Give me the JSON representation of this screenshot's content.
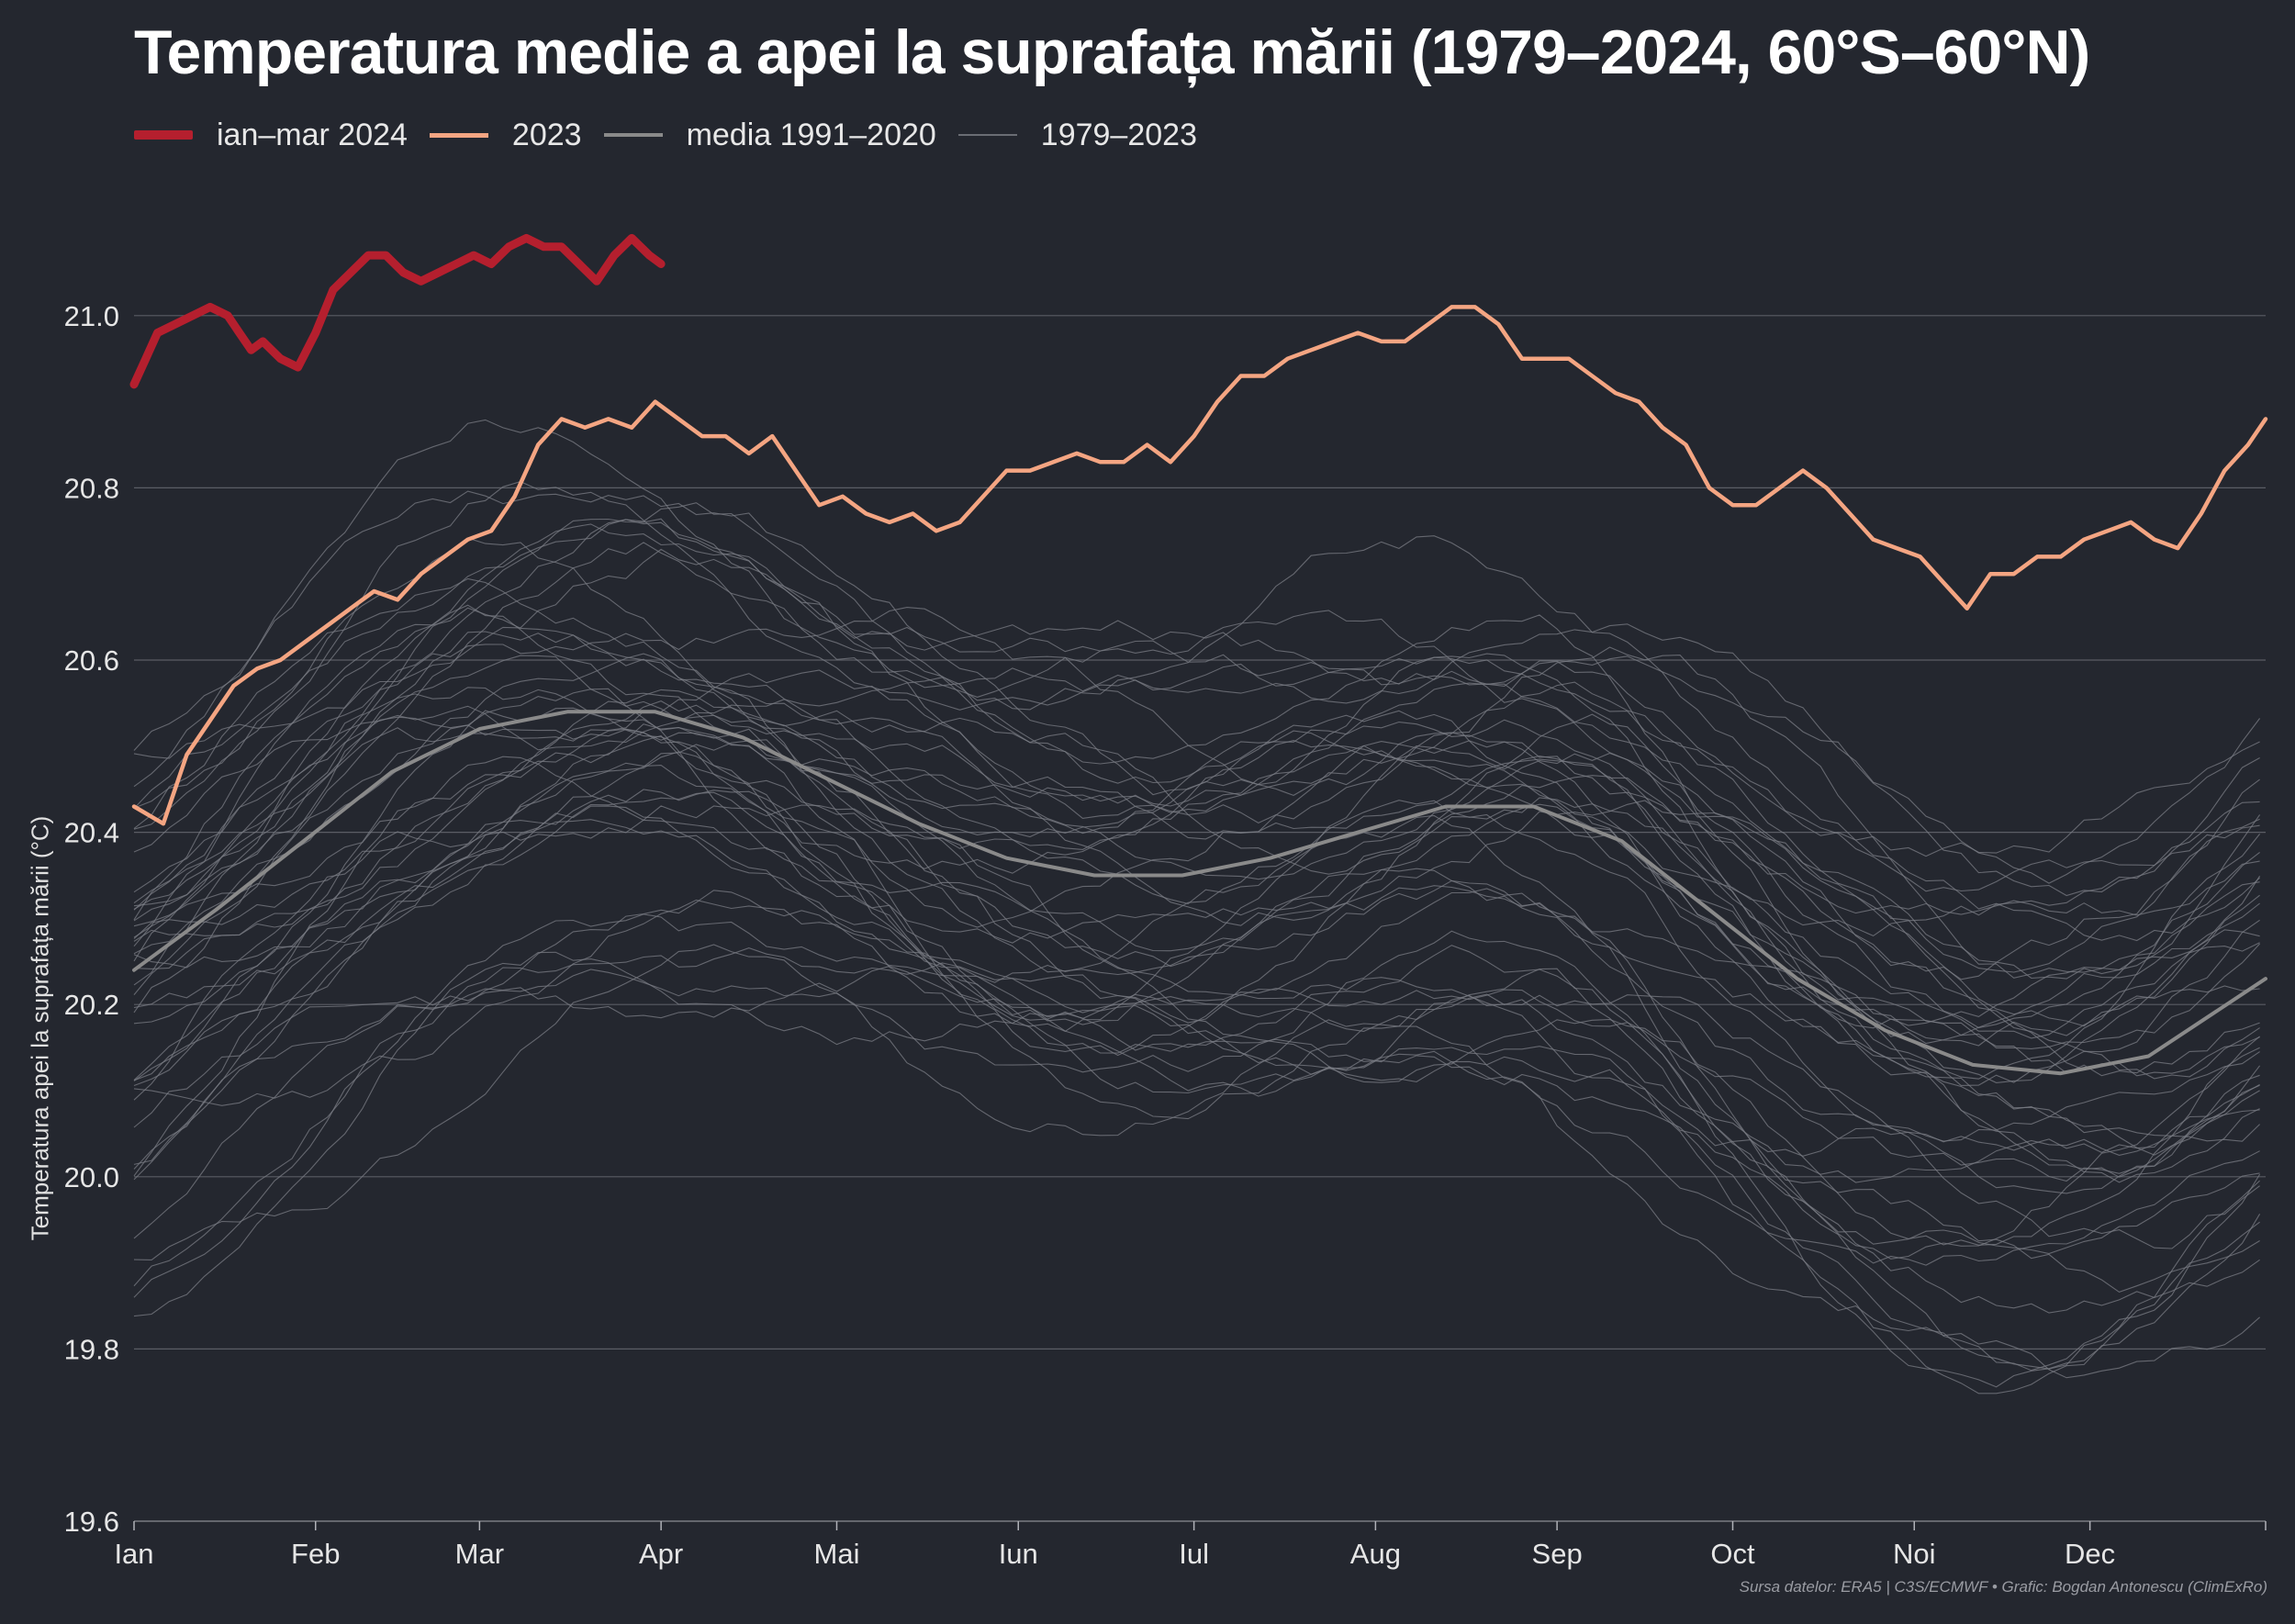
{
  "chart_data": {
    "type": "line",
    "title": "Temperatura medie a apei la suprafața mării (1979–2024, 60°S–60°N)",
    "ylabel": "Temperatura apei la suprafața mării (°C)",
    "xlabel": "",
    "ylim": [
      19.6,
      21.1
    ],
    "y_ticks": [
      "19.6",
      "19.8",
      "20.0",
      "20.2",
      "20.4",
      "20.6",
      "20.8",
      "21.0"
    ],
    "x_ticks": [
      "Ian",
      "Feb",
      "Mar",
      "Apr",
      "Mai",
      "Iun",
      "Iul",
      "Aug",
      "Sep",
      "Oct",
      "Noi",
      "Dec"
    ],
    "x_tick_days": [
      1,
      32,
      60,
      91,
      121,
      152,
      182,
      213,
      244,
      274,
      305,
      335
    ],
    "grid": "horizontal",
    "legend_position": "top-left",
    "legend": [
      {
        "label": "ian–mar 2024",
        "color": "#b51f2e",
        "style": "thick"
      },
      {
        "label": "2023",
        "color": "#f4a582",
        "style": "medium"
      },
      {
        "label": "media 1991–2020",
        "color": "#8a8a8a",
        "style": "medium"
      },
      {
        "label": "1979–2023",
        "color": "#6a6d74",
        "style": "thin"
      }
    ],
    "series": [
      {
        "name": "ian–mar 2024",
        "color": "#b51f2e",
        "x": [
          1,
          3,
          5,
          8,
          11,
          14,
          17,
          19,
          21,
          23,
          26,
          29,
          32,
          35,
          38,
          41,
          44,
          47,
          50,
          53,
          56,
          59,
          62,
          65,
          68,
          71,
          74,
          77,
          80,
          83,
          86,
          89,
          91
        ],
        "y": [
          20.92,
          20.95,
          20.98,
          20.99,
          21.0,
          21.01,
          21.0,
          20.98,
          20.96,
          20.97,
          20.95,
          20.94,
          20.98,
          21.03,
          21.05,
          21.07,
          21.07,
          21.05,
          21.04,
          21.05,
          21.06,
          21.07,
          21.06,
          21.08,
          21.09,
          21.08,
          21.08,
          21.06,
          21.04,
          21.07,
          21.09,
          21.07,
          21.06
        ]
      },
      {
        "name": "2023",
        "color": "#f4a582",
        "x": [
          1,
          6,
          10,
          14,
          18,
          22,
          26,
          30,
          34,
          38,
          42,
          46,
          50,
          54,
          58,
          62,
          66,
          70,
          74,
          78,
          82,
          86,
          90,
          94,
          98,
          102,
          106,
          110,
          114,
          118,
          122,
          126,
          130,
          134,
          138,
          142,
          146,
          150,
          154,
          158,
          162,
          166,
          170,
          174,
          178,
          182,
          186,
          190,
          194,
          198,
          202,
          206,
          210,
          214,
          218,
          222,
          226,
          230,
          234,
          238,
          242,
          246,
          250,
          254,
          258,
          262,
          266,
          270,
          274,
          278,
          282,
          286,
          290,
          294,
          298,
          302,
          306,
          310,
          314,
          318,
          322,
          326,
          330,
          334,
          338,
          342,
          346,
          350,
          354,
          358,
          362,
          365
        ],
        "y": [
          20.43,
          20.41,
          20.49,
          20.53,
          20.57,
          20.59,
          20.6,
          20.62,
          20.64,
          20.66,
          20.68,
          20.67,
          20.7,
          20.72,
          20.74,
          20.75,
          20.79,
          20.85,
          20.88,
          20.87,
          20.88,
          20.87,
          20.9,
          20.88,
          20.86,
          20.86,
          20.84,
          20.86,
          20.82,
          20.78,
          20.79,
          20.77,
          20.76,
          20.77,
          20.75,
          20.76,
          20.79,
          20.82,
          20.82,
          20.83,
          20.84,
          20.83,
          20.83,
          20.85,
          20.83,
          20.86,
          20.9,
          20.93,
          20.93,
          20.95,
          20.96,
          20.97,
          20.98,
          20.97,
          20.97,
          20.99,
          21.01,
          21.01,
          20.99,
          20.95,
          20.95,
          20.95,
          20.93,
          20.91,
          20.9,
          20.87,
          20.85,
          20.8,
          20.78,
          20.78,
          20.8,
          20.82,
          20.8,
          20.77,
          20.74,
          20.73,
          20.72,
          20.69,
          20.66,
          20.7,
          20.7,
          20.72,
          20.72,
          20.74,
          20.75,
          20.76,
          20.74,
          20.73,
          20.77,
          20.82,
          20.85,
          20.88
        ]
      },
      {
        "name": "media 1991–2020",
        "color": "#8a8a8a",
        "x": [
          1,
          15,
          30,
          45,
          60,
          75,
          90,
          105,
          120,
          135,
          150,
          165,
          180,
          195,
          210,
          225,
          240,
          255,
          270,
          285,
          300,
          315,
          330,
          345,
          365
        ],
        "y": [
          20.24,
          20.31,
          20.39,
          20.47,
          20.52,
          20.54,
          20.54,
          20.51,
          20.46,
          20.41,
          20.37,
          20.35,
          20.35,
          20.37,
          20.4,
          20.43,
          20.43,
          20.39,
          20.31,
          20.23,
          20.17,
          20.13,
          20.12,
          20.14,
          20.23
        ]
      }
    ],
    "background_years": {
      "name": "1979–2023",
      "color": "#6a6d74",
      "offsets": [
        -0.33,
        -0.3,
        -0.28,
        -0.26,
        -0.25,
        -0.23,
        -0.22,
        -0.2,
        -0.19,
        -0.18,
        -0.16,
        -0.15,
        -0.14,
        -0.12,
        -0.11,
        -0.1,
        -0.08,
        -0.07,
        -0.06,
        -0.05,
        -0.03,
        -0.02,
        -0.01,
        0.0,
        0.01,
        0.02,
        0.03,
        0.04,
        0.05,
        0.06,
        0.07,
        0.08,
        0.09,
        0.1,
        0.11,
        0.12,
        0.13,
        0.14,
        0.15,
        0.16,
        0.17,
        0.18,
        0.2,
        0.22,
        0.24
      ]
    }
  },
  "source": "Sursa datelor: ERA5 | C3S/ECMWF • Grafic: Bogdan Antonescu (ClimExRo)"
}
